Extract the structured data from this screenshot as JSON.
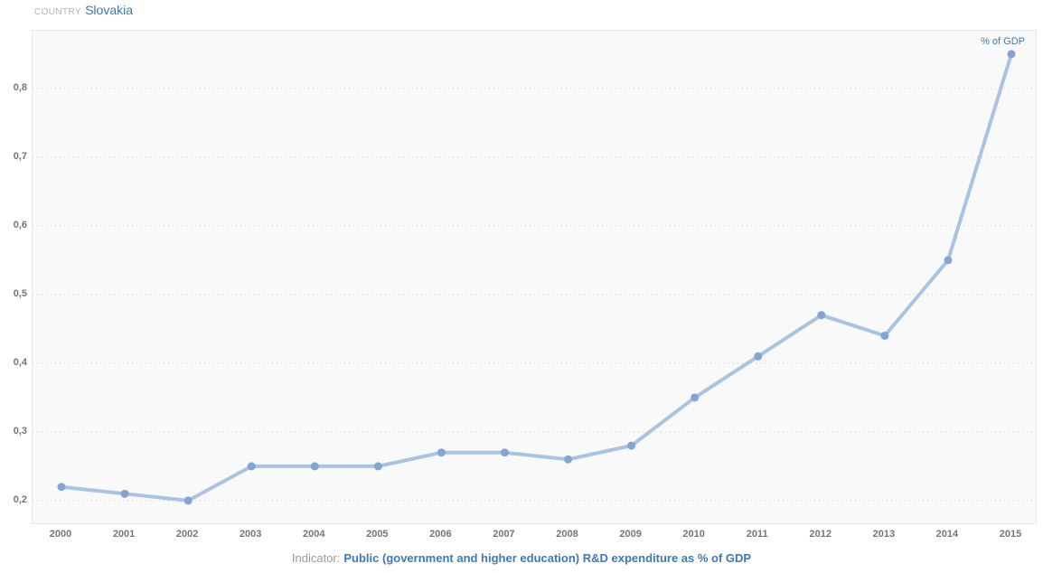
{
  "header": {
    "label": "COUNTRY",
    "value": "Slovakia"
  },
  "footer": {
    "label": "Indicator:",
    "value": "Public (government and higher education) R&D expenditure as % of GDP"
  },
  "colors": {
    "accent_blue": "#3a7ab8",
    "line": "#a9c3e3",
    "marker": "#82a5d2",
    "grid": "#c9c9c9",
    "axis_text": "#757575",
    "muted_label": "#b3b3b3",
    "footer_label": "#9a9a9a",
    "plot_background": "#f9f9f9",
    "plot_border": "#e8e8e8"
  },
  "chart_data": {
    "type": "line",
    "title": "",
    "xlabel": "",
    "ylabel": "",
    "categories": [
      "2000",
      "2001",
      "2002",
      "2003",
      "2004",
      "2005",
      "2006",
      "2007",
      "2008",
      "2009",
      "2010",
      "2011",
      "2012",
      "2013",
      "2014",
      "2015"
    ],
    "series": [
      {
        "name": "% of GDP",
        "values": [
          0.22,
          0.21,
          0.2,
          0.25,
          0.25,
          0.25,
          0.27,
          0.27,
          0.26,
          0.28,
          0.35,
          0.41,
          0.47,
          0.44,
          0.55,
          0.85
        ]
      }
    ],
    "ylim": [
      0.167,
      0.884
    ],
    "yticks": [
      0.2,
      0.3,
      0.4,
      0.5,
      0.6,
      0.7,
      0.8
    ],
    "ytick_labels": [
      "0,2",
      "0,3",
      "0,4",
      "0,5",
      "0,6",
      "0,7",
      "0,8"
    ],
    "grid": "horizontal-dotted",
    "legend_position": "top-right"
  }
}
